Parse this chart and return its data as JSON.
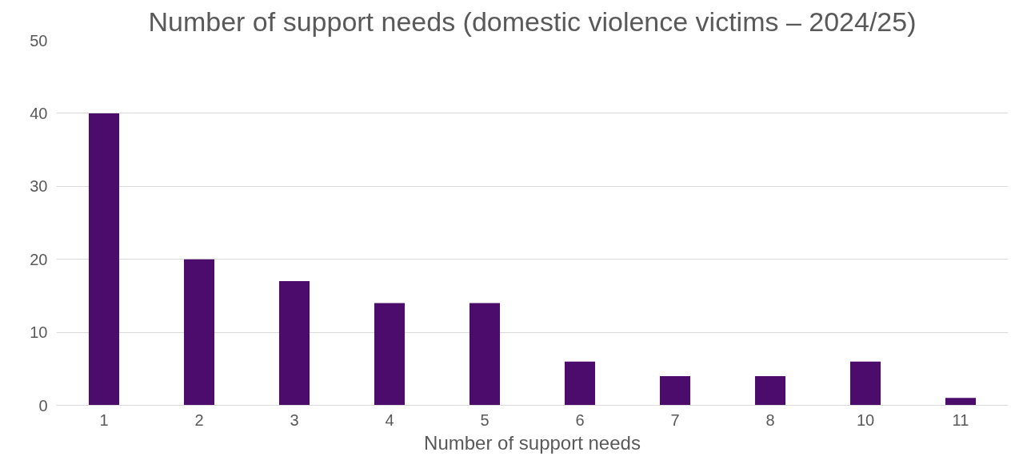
{
  "chart_data": {
    "type": "bar",
    "title": "Number of support needs (domestic violence victims – 2024/25)",
    "xlabel": "Number of support needs",
    "categories": [
      "1",
      "2",
      "3",
      "4",
      "5",
      "6",
      "7",
      "8",
      "10",
      "11"
    ],
    "values": [
      40,
      20,
      17,
      14,
      14,
      6,
      4,
      4,
      6,
      1
    ],
    "color": "#4b0c6b",
    "ylim": [
      0,
      50
    ],
    "yticks": [
      0,
      10,
      20,
      30,
      40,
      50
    ],
    "grid": "y"
  }
}
